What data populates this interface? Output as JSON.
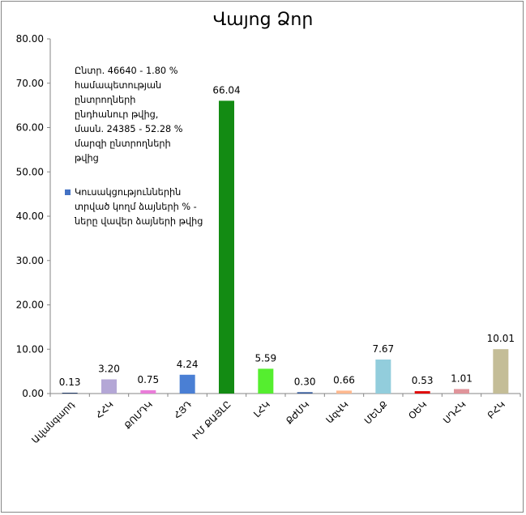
{
  "chart_data": {
    "type": "bar",
    "title": "Վայոց Ձոր",
    "note": "Ընտր.  46640 - 1.80 % համապետության ընտրողների ընդհանուր թվից, մասն. 24385 - 52.28 % մարզի ընտրողների թվից",
    "legend_label": "Կուսակցություններին տրված կողմ ձայների % - ները վավեր ձայների թվից",
    "categories": [
      "Ավանգարդ",
      "ՀՀԿ",
      "ՔՈՄԴԿ",
      "ՀՅԴ",
      "ԻՄ ՔԱՅԼԸ",
      "ԼՀԿ",
      "ՔԺՄԿ",
      "ԱզՎԿ",
      "ՄԵՆՔ",
      "ՕԵԿ",
      "ՍԴՀԿ",
      "ԲՀԿ"
    ],
    "values": [
      0.13,
      3.2,
      0.75,
      4.24,
      66.04,
      5.59,
      0.3,
      0.66,
      7.67,
      0.53,
      1.01,
      10.01
    ],
    "value_labels": [
      "0.13",
      "3.20",
      "0.75",
      "4.24",
      "66.04",
      "5.59",
      "0.30",
      "0.66",
      "7.67",
      "0.53",
      "1.01",
      "10.01"
    ],
    "colors": [
      "#1f3864",
      "#b4a7d6",
      "#ea7cd9",
      "#4a7fd4",
      "#138b13",
      "#55ee2f",
      "#2f5597",
      "#ffb98f",
      "#92cddc",
      "#e00000",
      "#e0949a",
      "#c4bd97"
    ],
    "ylim": [
      0,
      80
    ],
    "yticks": [
      "0.00",
      "10.00",
      "20.00",
      "30.00",
      "40.00",
      "50.00",
      "60.00",
      "70.00",
      "80.00"
    ],
    "ytick_values": [
      0,
      10,
      20,
      30,
      40,
      50,
      60,
      70,
      80
    ],
    "grid": false,
    "legend_position": "left"
  }
}
